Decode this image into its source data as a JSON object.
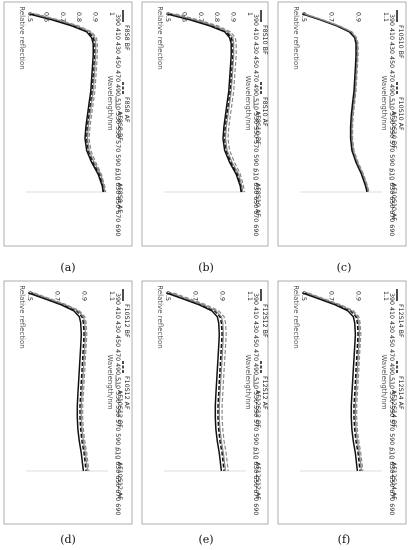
{
  "chart_data": [
    {
      "panel_label": "(a)",
      "type": "line",
      "xlabel": "Wavelength/nm",
      "ylabel": "Relative reflection",
      "x_ticks": [
        390,
        410,
        430,
        450,
        470,
        490,
        510,
        530,
        550,
        570,
        590,
        610,
        630,
        650,
        670,
        690
      ],
      "y_ticks": [
        "0.5",
        "0.6",
        "0.7",
        "0.8",
        "0.9",
        "1"
      ],
      "ylim": [
        0.5,
        1.0
      ],
      "x": [
        390,
        400,
        410,
        420,
        430,
        440,
        460,
        480,
        500,
        520,
        540,
        560,
        580,
        600,
        620,
        640,
        660,
        680,
        690
      ],
      "series": [
        {
          "name": "F8S8 BF",
          "style": "solid",
          "values": [
            0.52,
            0.66,
            0.78,
            0.87,
            0.9,
            0.91,
            0.91,
            0.905,
            0.9,
            0.895,
            0.885,
            0.875,
            0.865,
            0.86,
            0.87,
            0.9,
            0.94,
            0.965,
            0.97
          ]
        },
        {
          "name": "F8S8 AF",
          "style": "dash",
          "values": [
            0.54,
            0.68,
            0.8,
            0.88,
            0.91,
            0.92,
            0.92,
            0.915,
            0.91,
            0.905,
            0.895,
            0.885,
            0.875,
            0.87,
            0.88,
            0.91,
            0.95,
            0.97,
            0.975
          ]
        },
        {
          "name": "AF8S8 BF",
          "style": "grey",
          "values": [
            0.55,
            0.69,
            0.81,
            0.89,
            0.92,
            0.925,
            0.925,
            0.92,
            0.915,
            0.91,
            0.9,
            0.89,
            0.88,
            0.875,
            0.885,
            0.915,
            0.955,
            0.975,
            0.98
          ]
        },
        {
          "name": "AF8S8 AF",
          "style": "greydash",
          "values": [
            0.56,
            0.7,
            0.82,
            0.9,
            0.93,
            0.935,
            0.935,
            0.93,
            0.925,
            0.92,
            0.91,
            0.9,
            0.89,
            0.885,
            0.895,
            0.925,
            0.96,
            0.98,
            0.985
          ]
        }
      ]
    },
    {
      "panel_label": "(b)",
      "type": "line",
      "xlabel": "Wavelength/nm",
      "ylabel": "Relative reflection",
      "x_ticks": [
        390,
        410,
        430,
        450,
        470,
        490,
        510,
        530,
        550,
        570,
        590,
        610,
        630,
        650,
        670,
        690
      ],
      "y_ticks": [
        "0.5",
        "0.6",
        "0.7",
        "0.8",
        "0.9",
        "1"
      ],
      "ylim": [
        0.5,
        1.0
      ],
      "x": [
        390,
        400,
        410,
        420,
        430,
        440,
        460,
        480,
        500,
        520,
        540,
        560,
        580,
        600,
        620,
        640,
        660,
        680,
        690
      ],
      "series": [
        {
          "name": "F8S10 BF",
          "style": "solid",
          "values": [
            0.52,
            0.66,
            0.78,
            0.87,
            0.9,
            0.91,
            0.91,
            0.905,
            0.9,
            0.895,
            0.885,
            0.875,
            0.865,
            0.86,
            0.87,
            0.9,
            0.94,
            0.965,
            0.97
          ]
        },
        {
          "name": "F8S10 AF",
          "style": "dash",
          "values": [
            0.54,
            0.68,
            0.8,
            0.88,
            0.91,
            0.92,
            0.92,
            0.915,
            0.91,
            0.905,
            0.895,
            0.885,
            0.875,
            0.87,
            0.88,
            0.91,
            0.95,
            0.97,
            0.975
          ]
        },
        {
          "name": "AF8S10 BF",
          "style": "grey",
          "values": [
            0.55,
            0.69,
            0.81,
            0.89,
            0.92,
            0.925,
            0.925,
            0.92,
            0.915,
            0.91,
            0.9,
            0.89,
            0.88,
            0.875,
            0.885,
            0.915,
            0.955,
            0.975,
            0.98
          ]
        },
        {
          "name": "AF8S10 AF",
          "style": "greydash",
          "values": [
            0.57,
            0.71,
            0.83,
            0.905,
            0.935,
            0.94,
            0.94,
            0.935,
            0.93,
            0.925,
            0.915,
            0.905,
            0.895,
            0.89,
            0.9,
            0.93,
            0.965,
            0.985,
            0.99
          ]
        }
      ]
    },
    {
      "panel_label": "(c)",
      "type": "line",
      "xlabel": "Wavelength/nm",
      "ylabel": "Relative reflection",
      "x_ticks": [
        390,
        410,
        430,
        450,
        470,
        490,
        510,
        530,
        550,
        570,
        590,
        610,
        630,
        650,
        670,
        690
      ],
      "y_ticks": [
        "0.5",
        "0.7",
        "0.9",
        "1.1"
      ],
      "ylim": [
        0.5,
        1.1
      ],
      "x": [
        390,
        400,
        410,
        420,
        430,
        440,
        460,
        480,
        500,
        520,
        540,
        560,
        580,
        600,
        620,
        640,
        660,
        680,
        690
      ],
      "series": [
        {
          "name": "F10S10 BF",
          "style": "solid",
          "values": [
            0.52,
            0.65,
            0.77,
            0.86,
            0.9,
            0.91,
            0.91,
            0.905,
            0.9,
            0.895,
            0.885,
            0.875,
            0.87,
            0.87,
            0.88,
            0.91,
            0.95,
            0.98,
            0.99
          ]
        },
        {
          "name": "F10S10 AF",
          "style": "dash",
          "values": [
            0.53,
            0.66,
            0.78,
            0.87,
            0.905,
            0.915,
            0.915,
            0.91,
            0.905,
            0.9,
            0.89,
            0.88,
            0.875,
            0.875,
            0.885,
            0.915,
            0.955,
            0.985,
            0.995
          ]
        },
        {
          "name": "AF10S10 BF",
          "style": "grey",
          "values": [
            0.535,
            0.665,
            0.785,
            0.875,
            0.91,
            0.92,
            0.92,
            0.915,
            0.91,
            0.905,
            0.895,
            0.885,
            0.88,
            0.88,
            0.89,
            0.92,
            0.96,
            0.99,
            1.0
          ]
        },
        {
          "name": "AF10S10 AF",
          "style": "greydash",
          "values": [
            0.54,
            0.67,
            0.79,
            0.88,
            0.915,
            0.925,
            0.925,
            0.92,
            0.915,
            0.91,
            0.9,
            0.89,
            0.885,
            0.885,
            0.895,
            0.925,
            0.965,
            0.995,
            1.005
          ]
        }
      ]
    },
    {
      "panel_label": "(d)",
      "type": "line",
      "xlabel": "Wavelength/nm",
      "ylabel": "Relative reflection",
      "x_ticks": [
        390,
        410,
        430,
        450,
        470,
        490,
        510,
        530,
        550,
        570,
        590,
        610,
        630,
        650,
        670,
        690
      ],
      "y_ticks": [
        "0.5",
        "0.7",
        "0.9",
        "1.1"
      ],
      "ylim": [
        0.5,
        1.1
      ],
      "x": [
        390,
        400,
        410,
        420,
        430,
        440,
        460,
        480,
        500,
        520,
        540,
        560,
        580,
        600,
        620,
        640,
        660,
        680,
        690
      ],
      "series": [
        {
          "name": "F10S12 BF",
          "style": "solid",
          "values": [
            0.52,
            0.64,
            0.76,
            0.85,
            0.89,
            0.9,
            0.905,
            0.9,
            0.895,
            0.89,
            0.885,
            0.88,
            0.875,
            0.875,
            0.88,
            0.89,
            0.905,
            0.915,
            0.92
          ]
        },
        {
          "name": "F10S12 AF",
          "style": "dash",
          "values": [
            0.54,
            0.66,
            0.78,
            0.87,
            0.91,
            0.92,
            0.925,
            0.92,
            0.915,
            0.91,
            0.905,
            0.9,
            0.895,
            0.895,
            0.9,
            0.91,
            0.925,
            0.935,
            0.94
          ]
        },
        {
          "name": "AF10S12 BF",
          "style": "grey",
          "values": [
            0.55,
            0.67,
            0.79,
            0.88,
            0.92,
            0.93,
            0.935,
            0.93,
            0.925,
            0.92,
            0.915,
            0.91,
            0.905,
            0.905,
            0.91,
            0.92,
            0.935,
            0.945,
            0.95
          ]
        },
        {
          "name": "AF10S12 AF",
          "style": "greydash",
          "values": [
            0.56,
            0.68,
            0.8,
            0.89,
            0.93,
            0.94,
            0.945,
            0.94,
            0.935,
            0.93,
            0.925,
            0.92,
            0.915,
            0.915,
            0.92,
            0.93,
            0.945,
            0.955,
            0.96
          ]
        }
      ]
    },
    {
      "panel_label": "(e)",
      "type": "line",
      "xlabel": "Wavelength/nm",
      "ylabel": "Relative reflection",
      "x_ticks": [
        390,
        410,
        430,
        450,
        470,
        490,
        510,
        530,
        550,
        570,
        590,
        610,
        630,
        650,
        670,
        690
      ],
      "y_ticks": [
        "0.5",
        "0.7",
        "0.9",
        "1.1"
      ],
      "ylim": [
        0.5,
        1.1
      ],
      "x": [
        390,
        400,
        410,
        420,
        430,
        440,
        460,
        480,
        500,
        520,
        540,
        560,
        580,
        600,
        620,
        640,
        660,
        680,
        690
      ],
      "series": [
        {
          "name": "F12S12 BF",
          "style": "solid",
          "values": [
            0.52,
            0.64,
            0.76,
            0.85,
            0.89,
            0.9,
            0.905,
            0.9,
            0.895,
            0.89,
            0.885,
            0.88,
            0.875,
            0.875,
            0.88,
            0.89,
            0.905,
            0.915,
            0.92
          ]
        },
        {
          "name": "F12S12 AF",
          "style": "dash",
          "values": [
            0.54,
            0.66,
            0.78,
            0.87,
            0.91,
            0.92,
            0.925,
            0.92,
            0.915,
            0.91,
            0.905,
            0.9,
            0.895,
            0.895,
            0.9,
            0.91,
            0.925,
            0.935,
            0.94
          ]
        },
        {
          "name": "AF12S12 BF",
          "style": "grey",
          "values": [
            0.55,
            0.67,
            0.79,
            0.88,
            0.92,
            0.93,
            0.935,
            0.93,
            0.925,
            0.92,
            0.915,
            0.91,
            0.905,
            0.905,
            0.91,
            0.92,
            0.935,
            0.945,
            0.95
          ]
        },
        {
          "name": "AF12S12 AF",
          "style": "greydash",
          "values": [
            0.57,
            0.69,
            0.81,
            0.9,
            0.94,
            0.95,
            0.955,
            0.95,
            0.945,
            0.94,
            0.935,
            0.93,
            0.925,
            0.925,
            0.93,
            0.94,
            0.955,
            0.965,
            0.97
          ]
        }
      ]
    },
    {
      "panel_label": "(f)",
      "type": "line",
      "xlabel": "Wavelength/nm",
      "ylabel": "Relative reflection",
      "x_ticks": [
        390,
        410,
        430,
        450,
        470,
        490,
        510,
        530,
        550,
        570,
        590,
        610,
        630,
        650,
        670,
        690
      ],
      "y_ticks": [
        "0.5",
        "0.7",
        "0.9",
        "1.1"
      ],
      "ylim": [
        0.5,
        1.1
      ],
      "x": [
        390,
        400,
        410,
        420,
        430,
        440,
        460,
        480,
        500,
        520,
        540,
        560,
        580,
        600,
        620,
        640,
        660,
        680,
        690
      ],
      "series": [
        {
          "name": "F12S14 BF",
          "style": "solid",
          "values": [
            0.52,
            0.64,
            0.76,
            0.85,
            0.89,
            0.9,
            0.905,
            0.9,
            0.895,
            0.89,
            0.885,
            0.88,
            0.875,
            0.875,
            0.88,
            0.89,
            0.905,
            0.915,
            0.92
          ]
        },
        {
          "name": "F12S14 AF",
          "style": "dash",
          "values": [
            0.54,
            0.66,
            0.78,
            0.87,
            0.91,
            0.92,
            0.925,
            0.92,
            0.915,
            0.91,
            0.905,
            0.9,
            0.895,
            0.895,
            0.9,
            0.91,
            0.925,
            0.935,
            0.94
          ]
        },
        {
          "name": "AF12S14 BF",
          "style": "grey",
          "values": [
            0.55,
            0.67,
            0.79,
            0.88,
            0.92,
            0.93,
            0.935,
            0.93,
            0.925,
            0.92,
            0.915,
            0.91,
            0.905,
            0.905,
            0.91,
            0.92,
            0.935,
            0.945,
            0.95
          ]
        },
        {
          "name": "AF12S14 AF",
          "style": "greydash",
          "values": [
            0.56,
            0.68,
            0.8,
            0.89,
            0.93,
            0.94,
            0.945,
            0.94,
            0.935,
            0.93,
            0.925,
            0.92,
            0.915,
            0.915,
            0.92,
            0.93,
            0.945,
            0.955,
            0.96
          ]
        }
      ]
    }
  ],
  "colors": {
    "black": "#111111",
    "grey": "#8a8a8a",
    "frame": "#9a9a9a"
  }
}
